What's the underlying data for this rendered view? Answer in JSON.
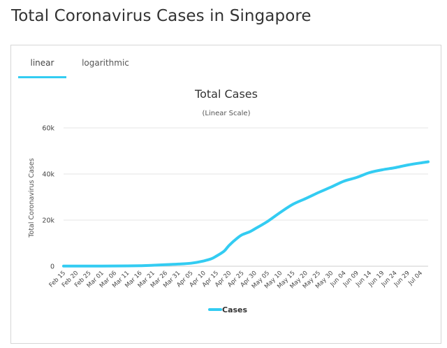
{
  "page": {
    "title": "Total Coronavirus Cases in Singapore"
  },
  "tabs": [
    {
      "label": "linear",
      "active": true
    },
    {
      "label": "logarithmic",
      "active": false
    }
  ],
  "colors": {
    "series": "#33ccf2",
    "grid": "#e6e6e6",
    "tab_underline": "#33ccf2"
  },
  "chart_data": {
    "type": "line",
    "title": "Total Cases",
    "subtitle": "(Linear Scale)",
    "xlabel": "",
    "ylabel": "Total Coronavirus Cases",
    "ylim": [
      0,
      60000
    ],
    "y_ticks": [
      0,
      20000,
      40000,
      60000
    ],
    "y_tick_labels": [
      "0",
      "20k",
      "40k",
      "60k"
    ],
    "categories": [
      "Feb 15",
      "Feb 20",
      "Feb 25",
      "Mar 01",
      "Mar 06",
      "Mar 11",
      "Mar 16",
      "Mar 21",
      "Mar 26",
      "Mar 31",
      "Apr 05",
      "Apr 10",
      "Apr 15",
      "Apr 20",
      "Apr 25",
      "Apr 30",
      "May 05",
      "May 10",
      "May 15",
      "May 20",
      "May 25",
      "May 30",
      "Jun 04",
      "Jun 09",
      "Jun 14",
      "Jun 19",
      "Jun 24",
      "Jun 29",
      "Jul 04"
    ],
    "grid": true,
    "legend_position": "bottom-center",
    "series": [
      {
        "name": "Cases",
        "x": [
          "Feb 15",
          "Feb 20",
          "Feb 25",
          "Mar 01",
          "Mar 06",
          "Mar 11",
          "Mar 16",
          "Mar 21",
          "Mar 26",
          "Mar 31",
          "Apr 05",
          "Apr 10",
          "Apr 13",
          "Apr 15",
          "Apr 18",
          "Apr 20",
          "Apr 23",
          "Apr 25",
          "Apr 28",
          "Apr 30",
          "May 05",
          "May 10",
          "May 15",
          "May 20",
          "May 25",
          "May 30",
          "Jun 04",
          "Jun 09",
          "Jun 14",
          "Jun 19",
          "Jun 24",
          "Jun 29",
          "Jul 04",
          "Jul 07"
        ],
        "values": [
          72,
          85,
          91,
          106,
          130,
          166,
          243,
          432,
          683,
          926,
          1309,
          2299,
          3252,
          4427,
          6588,
          9125,
          12075,
          13624,
          14951,
          16169,
          19410,
          23336,
          26891,
          29364,
          31960,
          34366,
          36922,
          38514,
          40604,
          41833,
          42736,
          43907,
          44800,
          45300
        ]
      }
    ]
  }
}
